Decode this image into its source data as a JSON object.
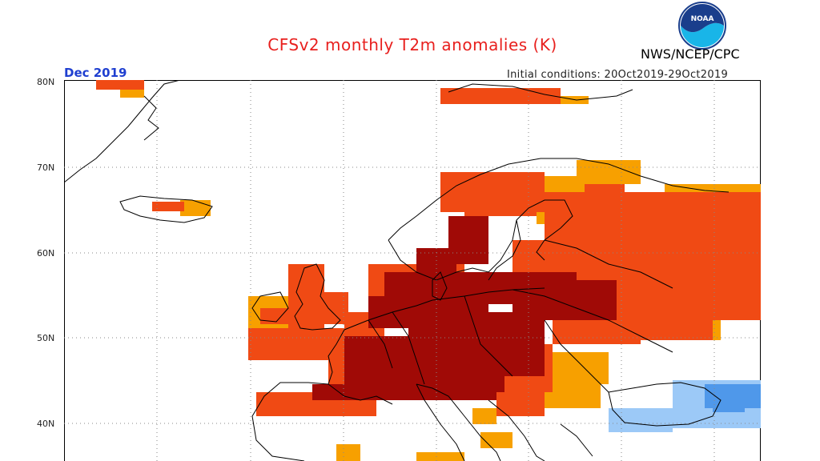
{
  "title": "CFSv2 monthly T2m anomalies (K)",
  "agency": "NWS/NCEP/CPC",
  "logo_text": "NOAA",
  "month": "Dec 2019",
  "initial_conditions": "Initial conditions: 20Oct2019-29Oct2019",
  "lat_labels": [
    "80N",
    "70N",
    "60N",
    "50N",
    "40N"
  ],
  "colors": {
    "title": "#e8201e",
    "month": "#1f3fd0",
    "anomaly_plus_1": "#f7a000",
    "anomaly_plus_2": "#f04a14",
    "anomaly_plus_3": "#a00a06",
    "anomaly_minus_1": "#9cc9f7",
    "anomaly_minus_2": "#4f98ea"
  }
}
